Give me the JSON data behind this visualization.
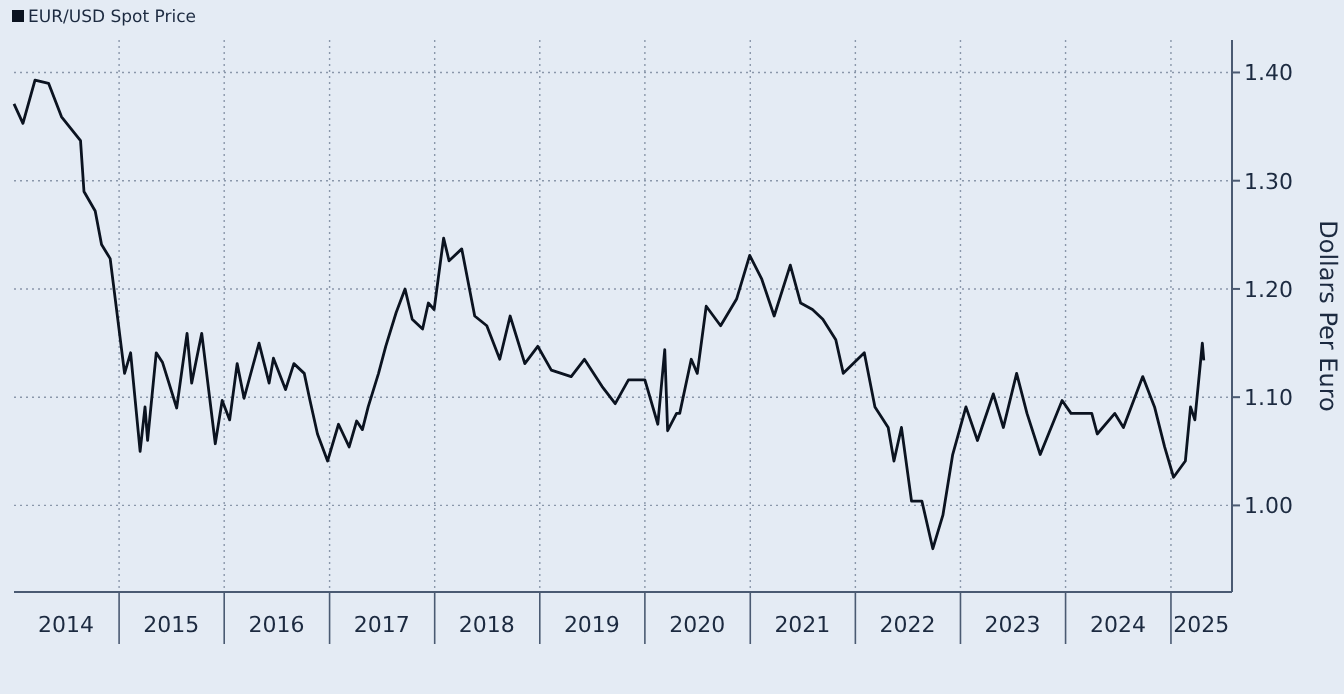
{
  "chart_data": {
    "type": "line",
    "ylabel": "Dollars Per Euro",
    "xlim": [
      "2014-01-01",
      "2025-08-01"
    ],
    "ylim": [
      0.92,
      1.43
    ],
    "xticks": [
      {
        "value": "2015-01-01",
        "label": null
      },
      {
        "value": "2016-01-01",
        "label": null
      },
      {
        "value": "2017-01-01",
        "label": null
      },
      {
        "value": "2018-01-01",
        "label": null
      },
      {
        "value": "2019-01-01",
        "label": null
      },
      {
        "value": "2020-01-01",
        "label": null
      },
      {
        "value": "2021-01-01",
        "label": null
      },
      {
        "value": "2022-01-01",
        "label": null
      },
      {
        "value": "2023-01-01",
        "label": null
      },
      {
        "value": "2024-01-01",
        "label": null
      },
      {
        "value": "2025-01-01",
        "label": null
      },
      {
        "value": "2014-07-01",
        "label": "2014"
      },
      {
        "value": "2015-07-01",
        "label": "2015"
      },
      {
        "value": "2016-07-01",
        "label": "2016"
      },
      {
        "value": "2017-07-01",
        "label": "2017"
      },
      {
        "value": "2018-07-01",
        "label": "2018"
      },
      {
        "value": "2019-07-01",
        "label": "2019"
      },
      {
        "value": "2020-07-01",
        "label": "2020"
      },
      {
        "value": "2021-07-01",
        "label": "2021"
      },
      {
        "value": "2022-07-01",
        "label": "2022"
      },
      {
        "value": "2023-07-01",
        "label": "2023"
      },
      {
        "value": "2024-07-01",
        "label": "2024"
      },
      {
        "value": "2025-04-16",
        "label": "2025"
      }
    ],
    "yticks": [
      {
        "value": 1.0,
        "label": "1.00"
      },
      {
        "value": 1.1,
        "label": "1.10"
      },
      {
        "value": 1.2,
        "label": "1.20"
      },
      {
        "value": 1.3,
        "label": "1.30"
      },
      {
        "value": 1.4,
        "label": "1.40"
      }
    ],
    "grid": true,
    "legend": "top left",
    "line_style": "solid",
    "marker": "none",
    "x": [
      "2014-01-01",
      "2014-02-01",
      "2014-03-15",
      "2014-05-01",
      "2014-06-15",
      "2014-08-20",
      "2014-09-01",
      "2014-10-10",
      "2014-11-01",
      "2014-12-01",
      "2015-01-20",
      "2015-02-10",
      "2015-03-15",
      "2015-04-01",
      "2015-04-10",
      "2015-05-10",
      "2015-06-01",
      "2015-07-20",
      "2015-08-25",
      "2015-09-10",
      "2015-10-15",
      "2015-12-01",
      "2015-12-25",
      "2016-01-20",
      "2016-02-15",
      "2016-03-10",
      "2016-05-01",
      "2016-06-05",
      "2016-06-20",
      "2016-08-01",
      "2016-08-30",
      "2016-10-05",
      "2016-10-25",
      "2016-11-20",
      "2016-12-25",
      "2017-02-01",
      "2017-03-10",
      "2017-04-05",
      "2017-04-25",
      "2017-05-15",
      "2017-06-20",
      "2017-07-15",
      "2017-08-20",
      "2017-09-20",
      "2017-10-15",
      "2017-11-20",
      "2017-12-10",
      "2017-12-30",
      "2018-02-01",
      "2018-02-20",
      "2018-04-05",
      "2018-05-20",
      "2018-07-01",
      "2018-08-15",
      "2018-09-20",
      "2018-11-10",
      "2018-12-25",
      "2019-02-10",
      "2019-04-20",
      "2019-06-05",
      "2019-08-05",
      "2019-09-20",
      "2019-11-05",
      "2020-01-01",
      "2020-02-15",
      "2020-03-10",
      "2020-03-20",
      "2020-04-20",
      "2020-05-01",
      "2020-06-10",
      "2020-07-01",
      "2020-08-01",
      "2020-09-20",
      "2020-11-15",
      "2020-12-30",
      "2021-02-10",
      "2021-03-25",
      "2021-05-20",
      "2021-06-25",
      "2021-08-05",
      "2021-09-10",
      "2021-10-25",
      "2021-11-20",
      "2022-02-01",
      "2022-03-10",
      "2022-04-25",
      "2022-05-15",
      "2022-06-10",
      "2022-07-15",
      "2022-08-20",
      "2022-09-27",
      "2022-11-01",
      "2022-12-05",
      "2023-01-20",
      "2023-03-01",
      "2023-04-25",
      "2023-05-30",
      "2023-07-15",
      "2023-08-20",
      "2023-10-05",
      "2023-12-20",
      "2024-01-20",
      "2024-04-01",
      "2024-04-20",
      "2024-06-20",
      "2024-07-20",
      "2024-09-25",
      "2024-11-05",
      "2024-12-10",
      "2025-01-10",
      "2025-02-20",
      "2025-03-10",
      "2025-03-25",
      "2025-04-20",
      "2025-04-25"
    ],
    "series": [
      {
        "name": "EUR/USD Spot Price",
        "color": "#0b1320",
        "values": [
          1.371,
          1.353,
          1.393,
          1.39,
          1.359,
          1.337,
          1.29,
          1.272,
          1.241,
          1.228,
          1.122,
          1.141,
          1.05,
          1.091,
          1.06,
          1.141,
          1.132,
          1.09,
          1.159,
          1.113,
          1.159,
          1.057,
          1.097,
          1.079,
          1.131,
          1.099,
          1.15,
          1.113,
          1.136,
          1.107,
          1.131,
          1.122,
          1.097,
          1.066,
          1.041,
          1.075,
          1.054,
          1.078,
          1.07,
          1.091,
          1.122,
          1.147,
          1.178,
          1.2,
          1.172,
          1.163,
          1.187,
          1.181,
          1.247,
          1.226,
          1.237,
          1.175,
          1.166,
          1.135,
          1.175,
          1.131,
          1.147,
          1.125,
          1.119,
          1.135,
          1.11,
          1.094,
          1.116,
          1.116,
          1.075,
          1.144,
          1.069,
          1.085,
          1.085,
          1.135,
          1.122,
          1.184,
          1.166,
          1.191,
          1.231,
          1.209,
          1.175,
          1.222,
          1.187,
          1.181,
          1.172,
          1.153,
          1.122,
          1.141,
          1.091,
          1.072,
          1.041,
          1.072,
          1.004,
          1.004,
          0.96,
          0.991,
          1.047,
          1.091,
          1.06,
          1.103,
          1.072,
          1.122,
          1.085,
          1.047,
          1.097,
          1.085,
          1.085,
          1.066,
          1.085,
          1.072,
          1.119,
          1.091,
          1.054,
          1.026,
          1.041,
          1.091,
          1.079,
          1.15,
          1.134
        ]
      }
    ]
  }
}
